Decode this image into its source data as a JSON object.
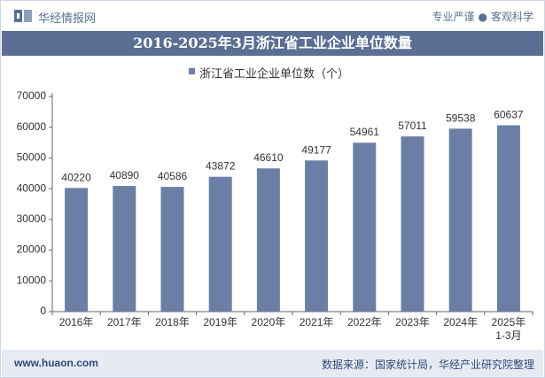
{
  "header": {
    "brand_name": "华经情报网",
    "tagline_left": "专业严谨",
    "tagline_right": "客观科学",
    "tagline_sep": "●"
  },
  "title": "2016-2025年3月浙江省工业企业单位数量",
  "colors": {
    "bar": "#6b7fa6",
    "title_bg": "#5a6f93",
    "footer_bg": "#e6ebf3",
    "brand": "#5a6f92"
  },
  "chart_data": {
    "type": "bar",
    "categories": [
      "2016年",
      "2017年",
      "2018年",
      "2019年",
      "2020年",
      "2021年",
      "2022年",
      "2023年",
      "2024年",
      "2025年\n1-3月"
    ],
    "series": [
      {
        "name": "浙江省工业企业单位数（个）",
        "values": [
          40220,
          40890,
          40586,
          43872,
          46610,
          49177,
          54961,
          57011,
          59538,
          60637
        ]
      }
    ],
    "ylim": [
      0,
      70000
    ],
    "yticks": [
      0,
      10000,
      20000,
      30000,
      40000,
      50000,
      60000,
      70000
    ],
    "grid": false,
    "legend": "top-center",
    "data_labels": true
  },
  "footer": {
    "website": "www.huaon.com",
    "source": "数据来源：国家统计局，华经产业研究院整理"
  }
}
